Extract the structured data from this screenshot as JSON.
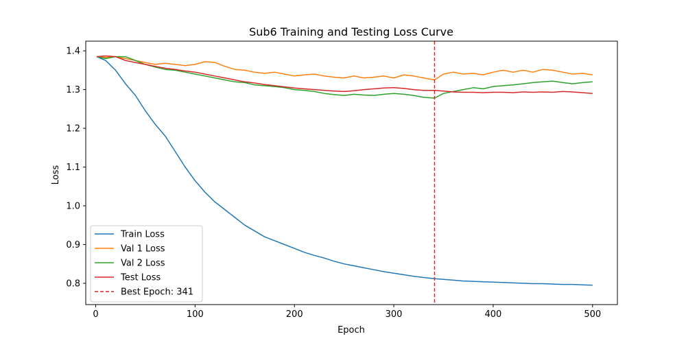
{
  "chart_data": {
    "type": "line",
    "title": "Sub6 Training and Testing Loss Curve",
    "xlabel": "Epoch",
    "ylabel": "Loss",
    "xlim": [
      -10,
      525
    ],
    "ylim": [
      0.745,
      1.425
    ],
    "xticks": [
      0,
      100,
      200,
      300,
      400,
      500
    ],
    "yticks": [
      0.8,
      0.9,
      1.0,
      1.1,
      1.2,
      1.3,
      1.4
    ],
    "ytick_labels": [
      "0.8",
      "0.9",
      "1.0",
      "1.1",
      "1.2",
      "1.3",
      "1.4"
    ],
    "grid": false,
    "legend_position": "lower-left",
    "best_epoch": {
      "epoch": 341,
      "label": "Best Epoch: 341",
      "color": "#d62728"
    },
    "series": [
      {
        "name": "Train Loss",
        "color": "#1f77b4",
        "x": [
          1,
          10,
          20,
          30,
          40,
          50,
          60,
          70,
          80,
          90,
          100,
          110,
          120,
          130,
          140,
          150,
          160,
          170,
          180,
          190,
          200,
          210,
          220,
          230,
          240,
          250,
          260,
          270,
          280,
          290,
          300,
          310,
          320,
          330,
          341,
          350,
          360,
          370,
          380,
          390,
          400,
          410,
          420,
          430,
          440,
          450,
          460,
          470,
          480,
          490,
          500
        ],
        "y": [
          1.385,
          1.375,
          1.35,
          1.315,
          1.285,
          1.245,
          1.21,
          1.18,
          1.14,
          1.1,
          1.065,
          1.035,
          1.01,
          0.99,
          0.97,
          0.95,
          0.935,
          0.92,
          0.91,
          0.9,
          0.89,
          0.88,
          0.872,
          0.865,
          0.857,
          0.85,
          0.845,
          0.84,
          0.835,
          0.83,
          0.826,
          0.822,
          0.818,
          0.815,
          0.812,
          0.81,
          0.808,
          0.806,
          0.805,
          0.804,
          0.803,
          0.802,
          0.801,
          0.8,
          0.799,
          0.799,
          0.798,
          0.797,
          0.797,
          0.796,
          0.795
        ]
      },
      {
        "name": "Val 1 Loss",
        "color": "#ff7f0e",
        "x": [
          1,
          10,
          20,
          30,
          40,
          50,
          60,
          70,
          80,
          90,
          100,
          110,
          120,
          130,
          140,
          150,
          160,
          170,
          180,
          190,
          200,
          210,
          220,
          230,
          240,
          250,
          260,
          270,
          280,
          290,
          300,
          310,
          320,
          330,
          341,
          350,
          360,
          370,
          380,
          390,
          400,
          410,
          420,
          430,
          440,
          450,
          460,
          470,
          480,
          490,
          500
        ],
        "y": [
          1.385,
          1.383,
          1.385,
          1.38,
          1.375,
          1.37,
          1.365,
          1.368,
          1.365,
          1.362,
          1.365,
          1.372,
          1.37,
          1.36,
          1.352,
          1.35,
          1.345,
          1.342,
          1.345,
          1.34,
          1.335,
          1.338,
          1.34,
          1.335,
          1.332,
          1.33,
          1.335,
          1.33,
          1.332,
          1.335,
          1.33,
          1.338,
          1.335,
          1.33,
          1.325,
          1.34,
          1.345,
          1.34,
          1.342,
          1.338,
          1.345,
          1.35,
          1.345,
          1.35,
          1.345,
          1.352,
          1.35,
          1.345,
          1.34,
          1.342,
          1.338
        ]
      },
      {
        "name": "Val 2 Loss",
        "color": "#2ca02c",
        "x": [
          1,
          10,
          20,
          30,
          40,
          50,
          60,
          70,
          80,
          90,
          100,
          110,
          120,
          130,
          140,
          150,
          160,
          170,
          180,
          190,
          200,
          210,
          220,
          230,
          240,
          250,
          260,
          270,
          280,
          290,
          300,
          310,
          320,
          330,
          341,
          350,
          360,
          370,
          380,
          390,
          400,
          410,
          420,
          430,
          440,
          450,
          460,
          470,
          480,
          490,
          500
        ],
        "y": [
          1.385,
          1.38,
          1.385,
          1.385,
          1.375,
          1.365,
          1.358,
          1.352,
          1.35,
          1.345,
          1.34,
          1.335,
          1.33,
          1.325,
          1.32,
          1.318,
          1.312,
          1.31,
          1.308,
          1.305,
          1.3,
          1.298,
          1.295,
          1.29,
          1.287,
          1.285,
          1.288,
          1.286,
          1.285,
          1.288,
          1.29,
          1.288,
          1.285,
          1.28,
          1.278,
          1.29,
          1.295,
          1.3,
          1.305,
          1.302,
          1.308,
          1.31,
          1.312,
          1.315,
          1.318,
          1.32,
          1.322,
          1.318,
          1.315,
          1.318,
          1.32
        ]
      },
      {
        "name": "Test Loss",
        "color": "#d62728",
        "x": [
          1,
          10,
          20,
          30,
          40,
          50,
          60,
          70,
          80,
          90,
          100,
          110,
          120,
          130,
          140,
          150,
          160,
          170,
          180,
          190,
          200,
          210,
          220,
          230,
          240,
          250,
          260,
          270,
          280,
          290,
          300,
          310,
          320,
          330,
          341,
          350,
          360,
          370,
          380,
          390,
          400,
          410,
          420,
          430,
          440,
          450,
          460,
          470,
          480,
          490,
          500
        ],
        "y": [
          1.385,
          1.387,
          1.385,
          1.375,
          1.37,
          1.365,
          1.36,
          1.355,
          1.352,
          1.348,
          1.345,
          1.34,
          1.335,
          1.33,
          1.325,
          1.32,
          1.317,
          1.313,
          1.31,
          1.307,
          1.304,
          1.302,
          1.3,
          1.298,
          1.296,
          1.295,
          1.297,
          1.3,
          1.302,
          1.304,
          1.305,
          1.303,
          1.3,
          1.298,
          1.298,
          1.296,
          1.294,
          1.293,
          1.293,
          1.292,
          1.293,
          1.293,
          1.292,
          1.294,
          1.293,
          1.294,
          1.293,
          1.295,
          1.294,
          1.292,
          1.29
        ]
      }
    ],
    "legend": {
      "items": [
        {
          "label": "Train Loss",
          "color": "#1f77b4",
          "style": "solid"
        },
        {
          "label": "Val 1 Loss",
          "color": "#ff7f0e",
          "style": "solid"
        },
        {
          "label": "Val 2 Loss",
          "color": "#2ca02c",
          "style": "solid"
        },
        {
          "label": "Test Loss",
          "color": "#d62728",
          "style": "solid"
        },
        {
          "label": "Best Epoch: 341",
          "color": "#d62728",
          "style": "dashed"
        }
      ]
    }
  }
}
